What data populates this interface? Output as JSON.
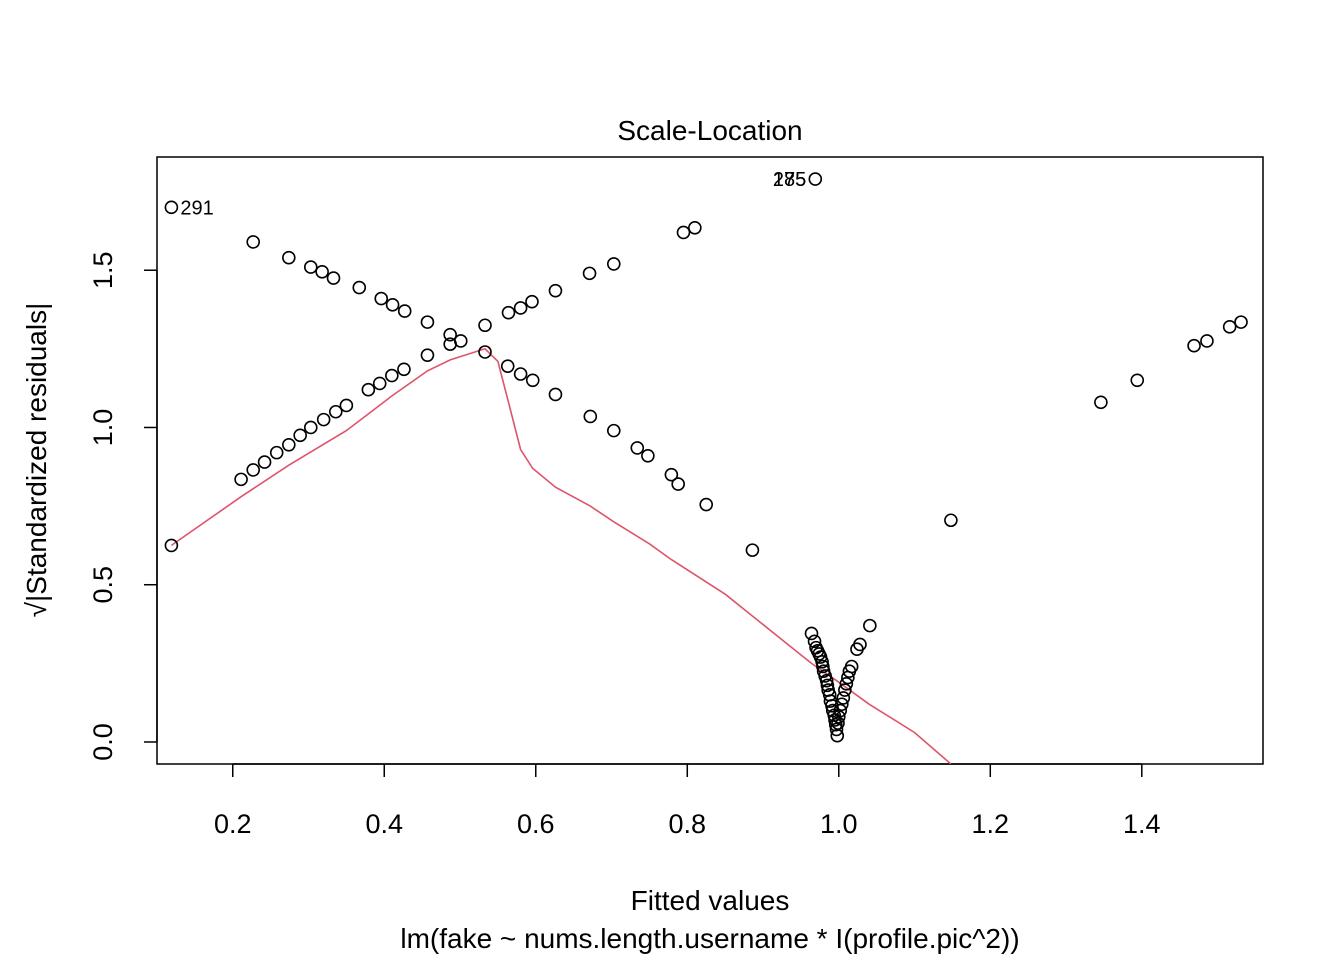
{
  "chart_data": {
    "type": "scatter",
    "title": "Scale-Location",
    "xlabel": "Fitted values",
    "subtitle": "lm(fake ~ nums.length.username * I(profile.pic^2))",
    "ylabel": "√|Standardized residuals|",
    "xlim": [
      0.1,
      1.56
    ],
    "ylim": [
      -0.07,
      1.86
    ],
    "xticks": [
      0.2,
      0.4,
      0.6,
      0.8,
      1.0,
      1.2,
      1.4
    ],
    "xtick_labels": [
      "0.2",
      "0.4",
      "0.6",
      "0.8",
      "1.0",
      "1.2",
      "1.4"
    ],
    "yticks": [
      0.0,
      0.5,
      1.0,
      1.5
    ],
    "ytick_labels": [
      "0.0",
      "0.5",
      "1.0",
      "1.5"
    ],
    "grid": false,
    "points": [
      [
        0.119,
        1.7
      ],
      [
        0.227,
        1.59
      ],
      [
        0.274,
        1.54
      ],
      [
        0.303,
        1.51
      ],
      [
        0.318,
        1.495
      ],
      [
        0.333,
        1.475
      ],
      [
        0.367,
        1.445
      ],
      [
        0.396,
        1.41
      ],
      [
        0.411,
        1.39
      ],
      [
        0.427,
        1.37
      ],
      [
        0.457,
        1.335
      ],
      [
        0.487,
        1.295
      ],
      [
        0.501,
        1.275
      ],
      [
        0.533,
        1.24
      ],
      [
        0.563,
        1.195
      ],
      [
        0.58,
        1.17
      ],
      [
        0.596,
        1.15
      ],
      [
        0.626,
        1.105
      ],
      [
        0.672,
        1.035
      ],
      [
        0.703,
        0.99
      ],
      [
        0.734,
        0.935
      ],
      [
        0.748,
        0.91
      ],
      [
        0.779,
        0.85
      ],
      [
        0.788,
        0.82
      ],
      [
        0.825,
        0.755
      ],
      [
        0.886,
        0.61
      ],
      [
        0.119,
        0.625
      ],
      [
        0.211,
        0.835
      ],
      [
        0.227,
        0.865
      ],
      [
        0.242,
        0.89
      ],
      [
        0.258,
        0.92
      ],
      [
        0.274,
        0.945
      ],
      [
        0.289,
        0.975
      ],
      [
        0.303,
        1.0
      ],
      [
        0.32,
        1.025
      ],
      [
        0.336,
        1.05
      ],
      [
        0.35,
        1.07
      ],
      [
        0.379,
        1.12
      ],
      [
        0.394,
        1.14
      ],
      [
        0.41,
        1.165
      ],
      [
        0.426,
        1.185
      ],
      [
        0.457,
        1.23
      ],
      [
        0.487,
        1.265
      ],
      [
        0.533,
        1.325
      ],
      [
        0.564,
        1.365
      ],
      [
        0.58,
        1.38
      ],
      [
        0.595,
        1.4
      ],
      [
        0.626,
        1.435
      ],
      [
        0.671,
        1.49
      ],
      [
        0.703,
        1.52
      ],
      [
        0.795,
        1.62
      ],
      [
        0.81,
        1.635
      ],
      [
        0.969,
        1.79
      ],
      [
        0.964,
        0.345
      ],
      [
        0.968,
        0.32
      ],
      [
        0.97,
        0.3
      ],
      [
        0.972,
        0.29
      ],
      [
        0.974,
        0.28
      ],
      [
        0.976,
        0.27
      ],
      [
        0.978,
        0.255
      ],
      [
        0.979,
        0.24
      ],
      [
        0.98,
        0.225
      ],
      [
        0.982,
        0.21
      ],
      [
        0.984,
        0.195
      ],
      [
        0.985,
        0.18
      ],
      [
        0.986,
        0.165
      ],
      [
        0.988,
        0.15
      ],
      [
        0.989,
        0.13
      ],
      [
        0.991,
        0.115
      ],
      [
        0.992,
        0.1
      ],
      [
        0.994,
        0.085
      ],
      [
        0.995,
        0.07
      ],
      [
        0.996,
        0.055
      ],
      [
        0.997,
        0.04
      ],
      [
        0.998,
        0.02
      ],
      [
        0.999,
        0.06
      ],
      [
        1.0,
        0.08
      ],
      [
        1.002,
        0.1
      ],
      [
        1.004,
        0.12
      ],
      [
        1.006,
        0.14
      ],
      [
        1.008,
        0.165
      ],
      [
        1.01,
        0.185
      ],
      [
        1.012,
        0.205
      ],
      [
        1.014,
        0.225
      ],
      [
        1.017,
        0.24
      ],
      [
        1.024,
        0.295
      ],
      [
        1.028,
        0.31
      ],
      [
        1.041,
        0.37
      ],
      [
        1.148,
        0.705
      ],
      [
        1.346,
        1.08
      ],
      [
        1.394,
        1.15
      ],
      [
        1.469,
        1.26
      ],
      [
        1.486,
        1.275
      ],
      [
        1.516,
        1.32
      ],
      [
        1.531,
        1.335
      ]
    ],
    "annotations": [
      {
        "x": 0.119,
        "y": 1.7,
        "label": "291",
        "side": "right"
      },
      {
        "x": 0.969,
        "y": 1.79,
        "label": "285",
        "side": "left"
      },
      {
        "x": 0.969,
        "y": 1.79,
        "label": "175",
        "side": "left"
      }
    ],
    "smoother": {
      "color": "#DF536B",
      "points": [
        [
          0.119,
          0.625
        ],
        [
          0.211,
          0.78
        ],
        [
          0.274,
          0.88
        ],
        [
          0.35,
          0.99
        ],
        [
          0.41,
          1.1
        ],
        [
          0.457,
          1.18
        ],
        [
          0.487,
          1.215
        ],
        [
          0.533,
          1.25
        ],
        [
          0.55,
          1.21
        ],
        [
          0.564,
          1.08
        ],
        [
          0.58,
          0.93
        ],
        [
          0.596,
          0.87
        ],
        [
          0.626,
          0.81
        ],
        [
          0.672,
          0.75
        ],
        [
          0.703,
          0.7
        ],
        [
          0.75,
          0.63
        ],
        [
          0.779,
          0.58
        ],
        [
          0.85,
          0.47
        ],
        [
          0.964,
          0.25
        ],
        [
          1.0,
          0.19
        ],
        [
          1.04,
          0.12
        ],
        [
          1.1,
          0.03
        ],
        [
          1.148,
          -0.07
        ]
      ]
    }
  }
}
